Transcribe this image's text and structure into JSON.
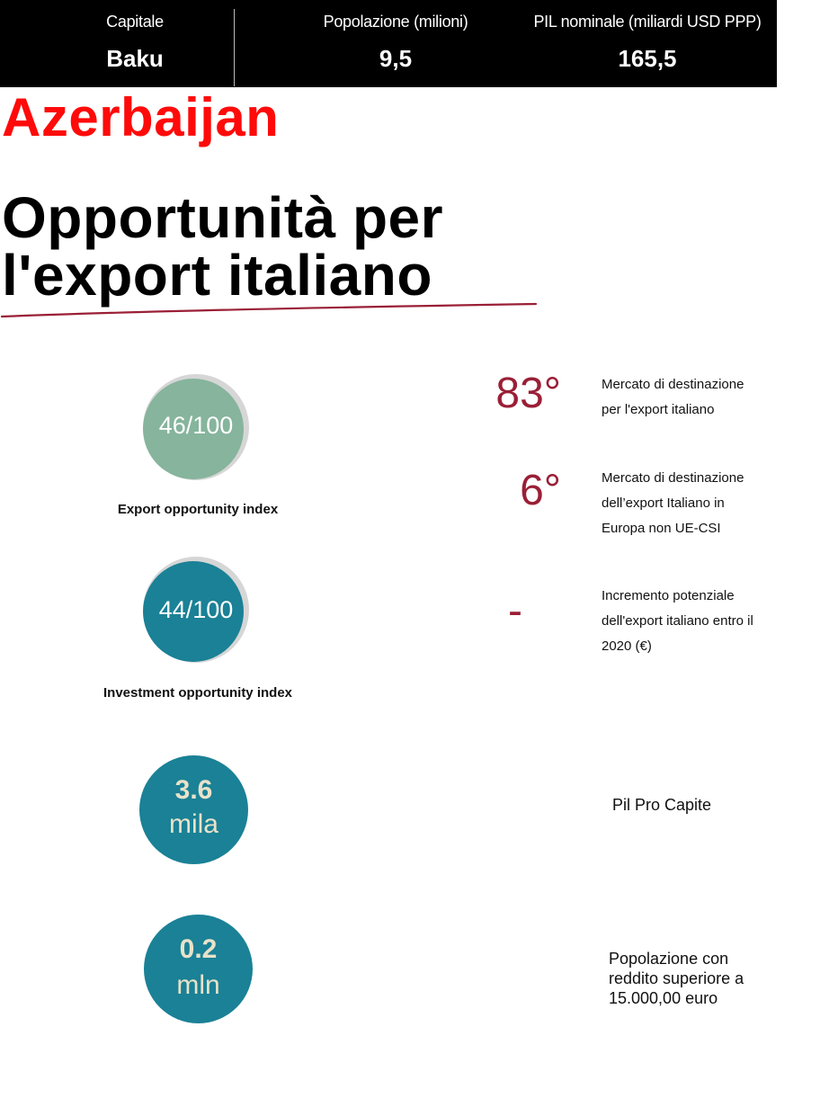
{
  "header": {
    "capital_label": "Capitale",
    "capital_value": "Baku",
    "population_label": "Popolazione (milioni)",
    "population_value": "9,5",
    "gdp_label": "PIL nominale (miliardi USD PPP)",
    "gdp_value": "165,5"
  },
  "country": "Azerbaijan",
  "heading": {
    "line1": "Opportunità per",
    "line2": "l'export italiano"
  },
  "indices": [
    {
      "value_text": "46/100",
      "score": 46,
      "max": 100,
      "label": "Export opportunity index",
      "color": "#86b49c"
    },
    {
      "value_text": "44/100",
      "score": 44,
      "max": 100,
      "label": "Investment opportunity index",
      "color": "#1a8196"
    }
  ],
  "rankings": [
    {
      "value": "83°",
      "description": "Mercato di destinazione per l'export italiano"
    },
    {
      "value": "6°",
      "description": "Mercato di destinazione dell’export Italiano in Europa non UE-CSI"
    },
    {
      "value": "-",
      "description": "Incremento potenziale dell'export italiano entro il 2020 (€)"
    }
  ],
  "stats": [
    {
      "value": "3.6",
      "unit": "mila",
      "description": "Pil Pro Capite"
    },
    {
      "value": "0.2",
      "unit": "mln",
      "description": "Popolazione con reddito superiore a 15.000,00 euro"
    }
  ],
  "colors": {
    "country_red": "#ff0a0a",
    "rank_red": "#9a1f36",
    "teal": "#1a8196",
    "sage": "#86b49c",
    "ring_grey": "#d6d6d6",
    "bubble_text": "#e9e2c9"
  }
}
